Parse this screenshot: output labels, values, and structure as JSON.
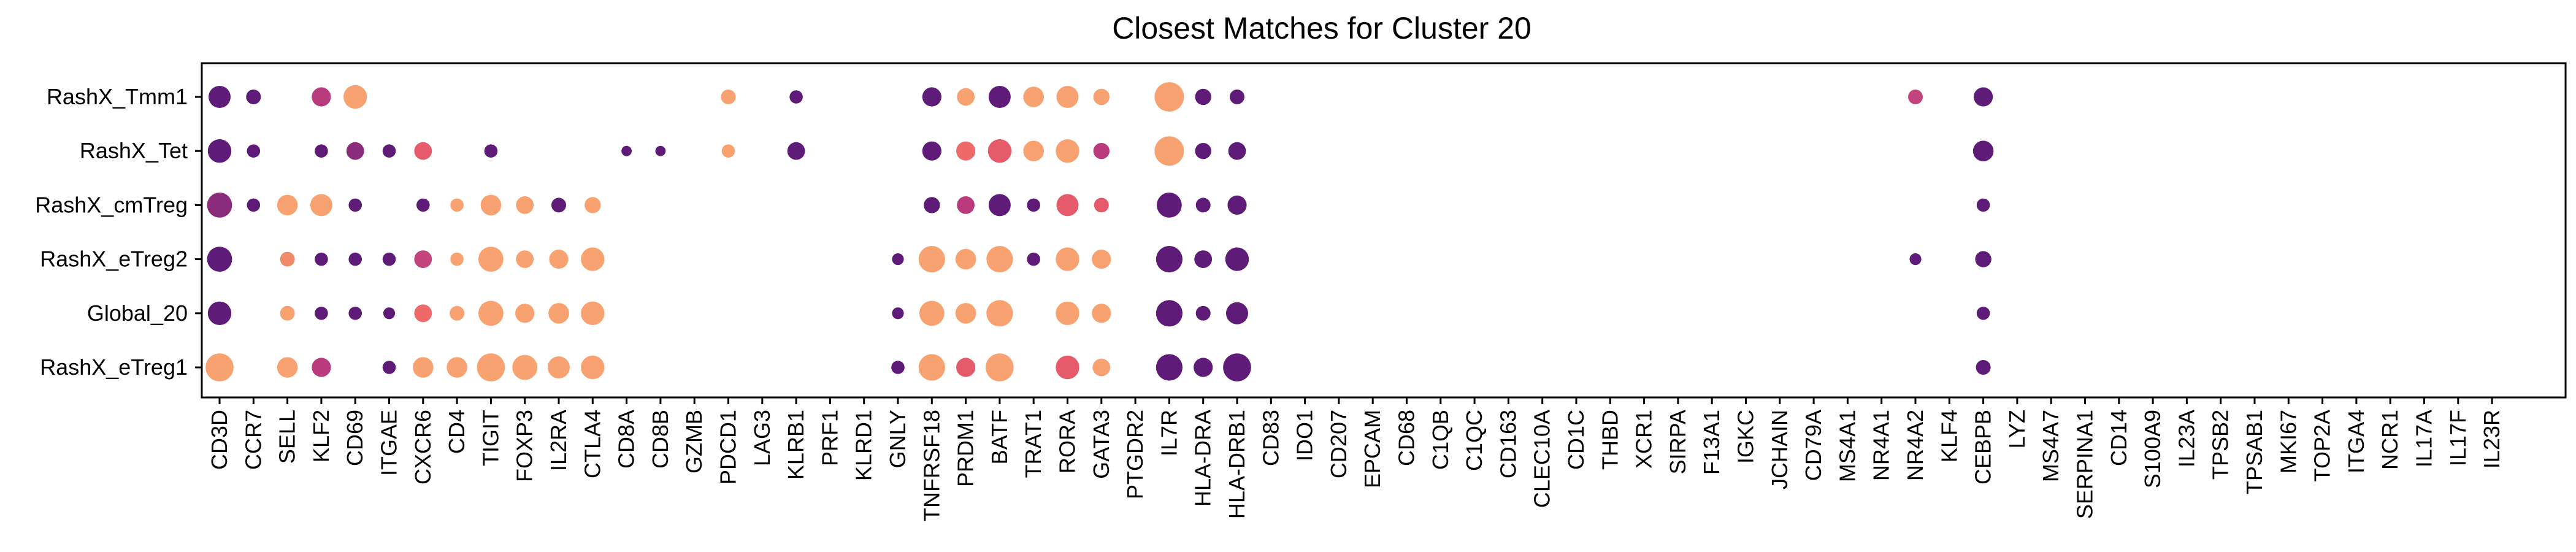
{
  "chart_data": {
    "type": "dotplot",
    "title": "Closest Matches for Cluster 20",
    "xlabel": "",
    "ylabel": "",
    "grid": false,
    "legend": "none",
    "genes": [
      "CD3D",
      "CCR7",
      "SELL",
      "KLF2",
      "CD69",
      "ITGAE",
      "CXCR6",
      "CD4",
      "TIGIT",
      "FOXP3",
      "IL2RA",
      "CTLA4",
      "CD8A",
      "CD8B",
      "GZMB",
      "PDCD1",
      "LAG3",
      "KLRB1",
      "PRF1",
      "KLRD1",
      "GNLY",
      "TNFRSF18",
      "PRDM1",
      "BATF",
      "TRAT1",
      "RORA",
      "GATA3",
      "PTGDR2",
      "IL7R",
      "HLA-DRA",
      "HLA-DRB1",
      "CD83",
      "IDO1",
      "CD207",
      "EPCAM",
      "CD68",
      "C1QB",
      "C1QC",
      "CD163",
      "CLEC10A",
      "CD1C",
      "THBD",
      "XCR1",
      "SIRPA",
      "F13A1",
      "IGKC",
      "JCHAIN",
      "CD79A",
      "MS4A1",
      "NR4A1",
      "NR4A2",
      "KLF4",
      "CEBPB",
      "LYZ",
      "MS4A7",
      "SERPINA1",
      "CD14",
      "S100A9",
      "IL23A",
      "TPSB2",
      "TPSAB1",
      "MKI67",
      "TOP2A",
      "ITGA4",
      "NCR1",
      "IL17A",
      "IL17F",
      "IL23R"
    ],
    "rows": [
      "RashX_Tmm1",
      "RashX_Tet",
      "RashX_cmTreg",
      "RashX_eTreg2",
      "Global_20",
      "RashX_eTreg1"
    ],
    "size_scale": "relative dot size 0-1",
    "color_scale": [
      "#5b1a78",
      "#f6a06e"
    ],
    "points": [
      {
        "row": "RashX_Tmm1",
        "gene": "CD3D",
        "size": 0.75,
        "color": "#5e1c78"
      },
      {
        "row": "RashX_Tmm1",
        "gene": "CCR7",
        "size": 0.5,
        "color": "#5e1c78"
      },
      {
        "row": "RashX_Tmm1",
        "gene": "KLF2",
        "size": 0.65,
        "color": "#b93a7d"
      },
      {
        "row": "RashX_Tmm1",
        "gene": "CD69",
        "size": 0.8,
        "color": "#f9a271"
      },
      {
        "row": "RashX_Tmm1",
        "gene": "PDCD1",
        "size": 0.5,
        "color": "#f9a271"
      },
      {
        "row": "RashX_Tmm1",
        "gene": "KLRB1",
        "size": 0.45,
        "color": "#5e1c78"
      },
      {
        "row": "RashX_Tmm1",
        "gene": "TNFRSF18",
        "size": 0.65,
        "color": "#5e1c78"
      },
      {
        "row": "RashX_Tmm1",
        "gene": "PRDM1",
        "size": 0.6,
        "color": "#f9a271"
      },
      {
        "row": "RashX_Tmm1",
        "gene": "BATF",
        "size": 0.75,
        "color": "#5e1c78"
      },
      {
        "row": "RashX_Tmm1",
        "gene": "TRAT1",
        "size": 0.7,
        "color": "#f9a271"
      },
      {
        "row": "RashX_Tmm1",
        "gene": "RORA",
        "size": 0.75,
        "color": "#f9a271"
      },
      {
        "row": "RashX_Tmm1",
        "gene": "GATA3",
        "size": 0.55,
        "color": "#f9a271"
      },
      {
        "row": "RashX_Tmm1",
        "gene": "IL7R",
        "size": 1.0,
        "color": "#f9a271"
      },
      {
        "row": "RashX_Tmm1",
        "gene": "HLA-DRA",
        "size": 0.55,
        "color": "#5e1c78"
      },
      {
        "row": "RashX_Tmm1",
        "gene": "HLA-DRB1",
        "size": 0.5,
        "color": "#5e1c78"
      },
      {
        "row": "RashX_Tmm1",
        "gene": "NR4A2",
        "size": 0.5,
        "color": "#c2447c"
      },
      {
        "row": "RashX_Tmm1",
        "gene": "CEBPB",
        "size": 0.65,
        "color": "#5e1c78"
      },
      {
        "row": "RashX_Tet",
        "gene": "CD3D",
        "size": 0.8,
        "color": "#5e1c78"
      },
      {
        "row": "RashX_Tet",
        "gene": "CCR7",
        "size": 0.45,
        "color": "#5e1c78"
      },
      {
        "row": "RashX_Tet",
        "gene": "KLF2",
        "size": 0.45,
        "color": "#5e1c78"
      },
      {
        "row": "RashX_Tet",
        "gene": "CD69",
        "size": 0.6,
        "color": "#8b2b7c"
      },
      {
        "row": "RashX_Tet",
        "gene": "ITGAE",
        "size": 0.45,
        "color": "#5e1c78"
      },
      {
        "row": "RashX_Tet",
        "gene": "CXCR6",
        "size": 0.6,
        "color": "#e55b6c"
      },
      {
        "row": "RashX_Tet",
        "gene": "TIGIT",
        "size": 0.45,
        "color": "#5e1c78"
      },
      {
        "row": "RashX_Tet",
        "gene": "CD8A",
        "size": 0.35,
        "color": "#5e1c78"
      },
      {
        "row": "RashX_Tet",
        "gene": "CD8B",
        "size": 0.35,
        "color": "#5e1c78"
      },
      {
        "row": "RashX_Tet",
        "gene": "PDCD1",
        "size": 0.45,
        "color": "#f9a271"
      },
      {
        "row": "RashX_Tet",
        "gene": "KLRB1",
        "size": 0.6,
        "color": "#5e1c78"
      },
      {
        "row": "RashX_Tet",
        "gene": "TNFRSF18",
        "size": 0.65,
        "color": "#5e1c78"
      },
      {
        "row": "RashX_Tet",
        "gene": "PRDM1",
        "size": 0.65,
        "color": "#ee6a6a"
      },
      {
        "row": "RashX_Tet",
        "gene": "BATF",
        "size": 0.8,
        "color": "#e55b6c"
      },
      {
        "row": "RashX_Tet",
        "gene": "TRAT1",
        "size": 0.7,
        "color": "#f9a271"
      },
      {
        "row": "RashX_Tet",
        "gene": "RORA",
        "size": 0.8,
        "color": "#f9a271"
      },
      {
        "row": "RashX_Tet",
        "gene": "GATA3",
        "size": 0.55,
        "color": "#b93a7d"
      },
      {
        "row": "RashX_Tet",
        "gene": "IL7R",
        "size": 1.0,
        "color": "#f9a271"
      },
      {
        "row": "RashX_Tet",
        "gene": "HLA-DRA",
        "size": 0.55,
        "color": "#5e1c78"
      },
      {
        "row": "RashX_Tet",
        "gene": "HLA-DRB1",
        "size": 0.6,
        "color": "#5e1c78"
      },
      {
        "row": "RashX_Tet",
        "gene": "CEBPB",
        "size": 0.7,
        "color": "#5e1c78"
      },
      {
        "row": "RashX_cmTreg",
        "gene": "CD3D",
        "size": 0.85,
        "color": "#8b2b7c"
      },
      {
        "row": "RashX_cmTreg",
        "gene": "CCR7",
        "size": 0.45,
        "color": "#5e1c78"
      },
      {
        "row": "RashX_cmTreg",
        "gene": "SELL",
        "size": 0.7,
        "color": "#f9a271"
      },
      {
        "row": "RashX_cmTreg",
        "gene": "KLF2",
        "size": 0.75,
        "color": "#f9a271"
      },
      {
        "row": "RashX_cmTreg",
        "gene": "CD69",
        "size": 0.45,
        "color": "#5e1c78"
      },
      {
        "row": "RashX_cmTreg",
        "gene": "CXCR6",
        "size": 0.45,
        "color": "#5e1c78"
      },
      {
        "row": "RashX_cmTreg",
        "gene": "CD4",
        "size": 0.45,
        "color": "#f9a271"
      },
      {
        "row": "RashX_cmTreg",
        "gene": "TIGIT",
        "size": 0.7,
        "color": "#f9a271"
      },
      {
        "row": "RashX_cmTreg",
        "gene": "FOXP3",
        "size": 0.6,
        "color": "#f9a271"
      },
      {
        "row": "RashX_cmTreg",
        "gene": "IL2RA",
        "size": 0.5,
        "color": "#5e1c78"
      },
      {
        "row": "RashX_cmTreg",
        "gene": "CTLA4",
        "size": 0.55,
        "color": "#f9a271"
      },
      {
        "row": "RashX_cmTreg",
        "gene": "TNFRSF18",
        "size": 0.55,
        "color": "#5e1c78"
      },
      {
        "row": "RashX_cmTreg",
        "gene": "PRDM1",
        "size": 0.6,
        "color": "#b93a7d"
      },
      {
        "row": "RashX_cmTreg",
        "gene": "BATF",
        "size": 0.75,
        "color": "#5e1c78"
      },
      {
        "row": "RashX_cmTreg",
        "gene": "TRAT1",
        "size": 0.45,
        "color": "#5e1c78"
      },
      {
        "row": "RashX_cmTreg",
        "gene": "RORA",
        "size": 0.75,
        "color": "#e55b6c"
      },
      {
        "row": "RashX_cmTreg",
        "gene": "GATA3",
        "size": 0.5,
        "color": "#e55b6c"
      },
      {
        "row": "RashX_cmTreg",
        "gene": "IL7R",
        "size": 0.85,
        "color": "#5e1c78"
      },
      {
        "row": "RashX_cmTreg",
        "gene": "HLA-DRA",
        "size": 0.5,
        "color": "#5e1c78"
      },
      {
        "row": "RashX_cmTreg",
        "gene": "HLA-DRB1",
        "size": 0.65,
        "color": "#5e1c78"
      },
      {
        "row": "RashX_cmTreg",
        "gene": "CEBPB",
        "size": 0.45,
        "color": "#5e1c78"
      },
      {
        "row": "RashX_eTreg2",
        "gene": "CD3D",
        "size": 0.85,
        "color": "#5e1c78"
      },
      {
        "row": "RashX_eTreg2",
        "gene": "SELL",
        "size": 0.5,
        "color": "#f08a6b"
      },
      {
        "row": "RashX_eTreg2",
        "gene": "KLF2",
        "size": 0.45,
        "color": "#5e1c78"
      },
      {
        "row": "RashX_eTreg2",
        "gene": "CD69",
        "size": 0.45,
        "color": "#5e1c78"
      },
      {
        "row": "RashX_eTreg2",
        "gene": "ITGAE",
        "size": 0.45,
        "color": "#5e1c78"
      },
      {
        "row": "RashX_eTreg2",
        "gene": "CXCR6",
        "size": 0.6,
        "color": "#c2447c"
      },
      {
        "row": "RashX_eTreg2",
        "gene": "CD4",
        "size": 0.45,
        "color": "#f9a271"
      },
      {
        "row": "RashX_eTreg2",
        "gene": "TIGIT",
        "size": 0.85,
        "color": "#f9a271"
      },
      {
        "row": "RashX_eTreg2",
        "gene": "FOXP3",
        "size": 0.6,
        "color": "#f9a271"
      },
      {
        "row": "RashX_eTreg2",
        "gene": "IL2RA",
        "size": 0.65,
        "color": "#f9a271"
      },
      {
        "row": "RashX_eTreg2",
        "gene": "CTLA4",
        "size": 0.8,
        "color": "#f9a271"
      },
      {
        "row": "RashX_eTreg2",
        "gene": "GNLY",
        "size": 0.4,
        "color": "#5e1c78"
      },
      {
        "row": "RashX_eTreg2",
        "gene": "TNFRSF18",
        "size": 0.9,
        "color": "#f9a271"
      },
      {
        "row": "RashX_eTreg2",
        "gene": "PRDM1",
        "size": 0.7,
        "color": "#f9a271"
      },
      {
        "row": "RashX_eTreg2",
        "gene": "BATF",
        "size": 0.9,
        "color": "#f9a271"
      },
      {
        "row": "RashX_eTreg2",
        "gene": "TRAT1",
        "size": 0.45,
        "color": "#5e1c78"
      },
      {
        "row": "RashX_eTreg2",
        "gene": "RORA",
        "size": 0.8,
        "color": "#f9a271"
      },
      {
        "row": "RashX_eTreg2",
        "gene": "GATA3",
        "size": 0.65,
        "color": "#f9a271"
      },
      {
        "row": "RashX_eTreg2",
        "gene": "IL7R",
        "size": 0.9,
        "color": "#5e1c78"
      },
      {
        "row": "RashX_eTreg2",
        "gene": "HLA-DRA",
        "size": 0.6,
        "color": "#5e1c78"
      },
      {
        "row": "RashX_eTreg2",
        "gene": "HLA-DRB1",
        "size": 0.8,
        "color": "#5e1c78"
      },
      {
        "row": "RashX_eTreg2",
        "gene": "NR4A2",
        "size": 0.4,
        "color": "#5e1c78"
      },
      {
        "row": "RashX_eTreg2",
        "gene": "CEBPB",
        "size": 0.55,
        "color": "#5e1c78"
      },
      {
        "row": "Global_20",
        "gene": "CD3D",
        "size": 0.8,
        "color": "#5e1c78"
      },
      {
        "row": "Global_20",
        "gene": "SELL",
        "size": 0.5,
        "color": "#f9a271"
      },
      {
        "row": "Global_20",
        "gene": "KLF2",
        "size": 0.45,
        "color": "#5e1c78"
      },
      {
        "row": "Global_20",
        "gene": "CD69",
        "size": 0.45,
        "color": "#5e1c78"
      },
      {
        "row": "Global_20",
        "gene": "ITGAE",
        "size": 0.4,
        "color": "#5e1c78"
      },
      {
        "row": "Global_20",
        "gene": "CXCR6",
        "size": 0.6,
        "color": "#ee6a6a"
      },
      {
        "row": "Global_20",
        "gene": "CD4",
        "size": 0.5,
        "color": "#f9a271"
      },
      {
        "row": "Global_20",
        "gene": "TIGIT",
        "size": 0.85,
        "color": "#f9a271"
      },
      {
        "row": "Global_20",
        "gene": "FOXP3",
        "size": 0.65,
        "color": "#f9a271"
      },
      {
        "row": "Global_20",
        "gene": "IL2RA",
        "size": 0.7,
        "color": "#f9a271"
      },
      {
        "row": "Global_20",
        "gene": "CTLA4",
        "size": 0.8,
        "color": "#f9a271"
      },
      {
        "row": "Global_20",
        "gene": "GNLY",
        "size": 0.4,
        "color": "#5e1c78"
      },
      {
        "row": "Global_20",
        "gene": "TNFRSF18",
        "size": 0.85,
        "color": "#f9a271"
      },
      {
        "row": "Global_20",
        "gene": "PRDM1",
        "size": 0.7,
        "color": "#f9a271"
      },
      {
        "row": "Global_20",
        "gene": "BATF",
        "size": 0.9,
        "color": "#f9a271"
      },
      {
        "row": "Global_20",
        "gene": "RORA",
        "size": 0.8,
        "color": "#f9a271"
      },
      {
        "row": "Global_20",
        "gene": "GATA3",
        "size": 0.65,
        "color": "#f9a271"
      },
      {
        "row": "Global_20",
        "gene": "IL7R",
        "size": 0.9,
        "color": "#5e1c78"
      },
      {
        "row": "Global_20",
        "gene": "HLA-DRA",
        "size": 0.5,
        "color": "#5e1c78"
      },
      {
        "row": "Global_20",
        "gene": "HLA-DRB1",
        "size": 0.75,
        "color": "#5e1c78"
      },
      {
        "row": "Global_20",
        "gene": "CEBPB",
        "size": 0.45,
        "color": "#5e1c78"
      },
      {
        "row": "RashX_eTreg1",
        "gene": "CD3D",
        "size": 0.95,
        "color": "#f9a271"
      },
      {
        "row": "RashX_eTreg1",
        "gene": "SELL",
        "size": 0.7,
        "color": "#f9a271"
      },
      {
        "row": "RashX_eTreg1",
        "gene": "KLF2",
        "size": 0.65,
        "color": "#b93a7d"
      },
      {
        "row": "RashX_eTreg1",
        "gene": "ITGAE",
        "size": 0.45,
        "color": "#5e1c78"
      },
      {
        "row": "RashX_eTreg1",
        "gene": "CXCR6",
        "size": 0.7,
        "color": "#f9a271"
      },
      {
        "row": "RashX_eTreg1",
        "gene": "CD4",
        "size": 0.7,
        "color": "#f9a271"
      },
      {
        "row": "RashX_eTreg1",
        "gene": "TIGIT",
        "size": 0.95,
        "color": "#f9a271"
      },
      {
        "row": "RashX_eTreg1",
        "gene": "FOXP3",
        "size": 0.85,
        "color": "#f9a271"
      },
      {
        "row": "RashX_eTreg1",
        "gene": "IL2RA",
        "size": 0.75,
        "color": "#f9a271"
      },
      {
        "row": "RashX_eTreg1",
        "gene": "CTLA4",
        "size": 0.8,
        "color": "#f9a271"
      },
      {
        "row": "RashX_eTreg1",
        "gene": "GNLY",
        "size": 0.45,
        "color": "#5e1c78"
      },
      {
        "row": "RashX_eTreg1",
        "gene": "TNFRSF18",
        "size": 0.9,
        "color": "#f9a271"
      },
      {
        "row": "RashX_eTreg1",
        "gene": "PRDM1",
        "size": 0.65,
        "color": "#e55b6c"
      },
      {
        "row": "RashX_eTreg1",
        "gene": "BATF",
        "size": 0.95,
        "color": "#f9a271"
      },
      {
        "row": "RashX_eTreg1",
        "gene": "RORA",
        "size": 0.8,
        "color": "#e55b6c"
      },
      {
        "row": "RashX_eTreg1",
        "gene": "GATA3",
        "size": 0.6,
        "color": "#f9a271"
      },
      {
        "row": "RashX_eTreg1",
        "gene": "IL7R",
        "size": 0.9,
        "color": "#5e1c78"
      },
      {
        "row": "RashX_eTreg1",
        "gene": "HLA-DRA",
        "size": 0.65,
        "color": "#5e1c78"
      },
      {
        "row": "RashX_eTreg1",
        "gene": "HLA-DRB1",
        "size": 0.95,
        "color": "#5e1c78"
      },
      {
        "row": "RashX_eTreg1",
        "gene": "CEBPB",
        "size": 0.5,
        "color": "#5e1c78"
      }
    ]
  }
}
